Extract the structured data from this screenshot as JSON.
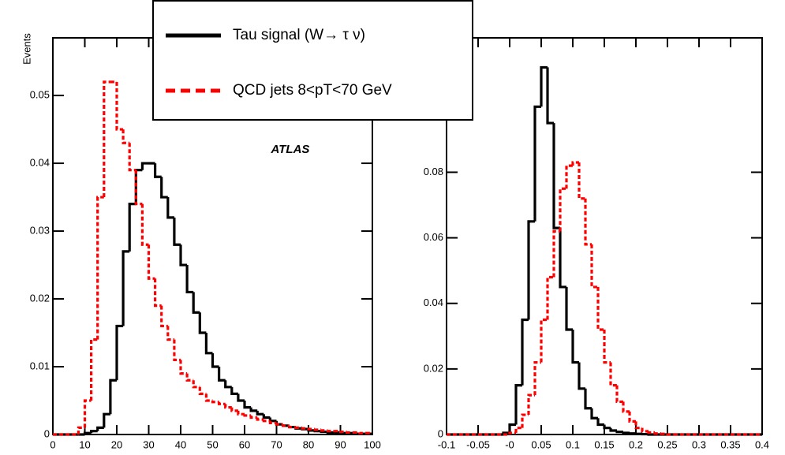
{
  "chart_data": [
    {
      "type": "histogram",
      "ylabel": "Events",
      "annotation": "ATLAS",
      "bins": [
        0,
        2,
        4,
        6,
        8,
        10,
        12,
        14,
        16,
        18,
        20,
        22,
        24,
        26,
        28,
        30,
        32,
        34,
        36,
        38,
        40,
        42,
        44,
        46,
        48,
        50,
        52,
        54,
        56,
        58,
        60,
        62,
        64,
        66,
        68,
        70,
        72,
        74,
        76,
        78,
        80,
        82,
        84,
        86,
        88,
        90,
        92,
        94,
        96,
        98,
        100
      ],
      "series": [
        {
          "name": "Tau signal (W→ τ ν)",
          "color": "#000000",
          "linestyle": "solid",
          "values": [
            0,
            0,
            0,
            0,
            0,
            0.0002,
            0.0005,
            0.001,
            0.003,
            0.008,
            0.016,
            0.027,
            0.034,
            0.039,
            0.04,
            0.04,
            0.038,
            0.035,
            0.032,
            0.028,
            0.025,
            0.021,
            0.018,
            0.015,
            0.012,
            0.01,
            0.008,
            0.007,
            0.006,
            0.005,
            0.004,
            0.0035,
            0.003,
            0.0025,
            0.002,
            0.0015,
            0.0013,
            0.0011,
            0.0009,
            0.0008,
            0.0006,
            0.0005,
            0.0004,
            0.0003,
            0.0003,
            0.0002,
            0.0002,
            0.0001,
            0.0001,
            0.0001
          ]
        },
        {
          "name": "QCD jets 8<pT<70 GeV",
          "color": "#ff0000",
          "linestyle": "dashed",
          "values": [
            0,
            0,
            0,
            0,
            0.001,
            0.005,
            0.014,
            0.035,
            0.052,
            0.052,
            0.045,
            0.043,
            0.039,
            0.034,
            0.028,
            0.023,
            0.019,
            0.016,
            0.014,
            0.011,
            0.009,
            0.008,
            0.007,
            0.006,
            0.005,
            0.0048,
            0.0045,
            0.004,
            0.0035,
            0.003,
            0.0028,
            0.0025,
            0.0022,
            0.002,
            0.0017,
            0.0015,
            0.0013,
            0.0011,
            0.001,
            0.0009,
            0.0008,
            0.0007,
            0.0006,
            0.0005,
            0.0005,
            0.0004,
            0.0003,
            0.0003,
            0.0002,
            0.0002
          ]
        }
      ],
      "xlim": [
        0,
        100
      ],
      "xticks": [
        0,
        10,
        20,
        30,
        40,
        50,
        60,
        70,
        80,
        90,
        100
      ],
      "ylim": [
        0,
        0.0585
      ],
      "yticks": [
        0,
        0.01,
        0.02,
        0.03,
        0.04,
        0.05
      ]
    },
    {
      "type": "histogram",
      "bins": [
        -0.1,
        -0.09,
        -0.08,
        -0.07,
        -0.06,
        -0.05,
        -0.04,
        -0.03,
        -0.02,
        -0.01,
        0,
        0.01,
        0.02,
        0.03,
        0.04,
        0.05,
        0.06,
        0.07,
        0.08,
        0.09,
        0.1,
        0.11,
        0.12,
        0.13,
        0.14,
        0.15,
        0.16,
        0.17,
        0.18,
        0.19,
        0.2,
        0.21,
        0.22,
        0.23,
        0.24,
        0.25,
        0.26,
        0.27,
        0.28,
        0.29,
        0.3,
        0.31,
        0.32,
        0.33,
        0.34,
        0.35,
        0.36,
        0.37,
        0.38,
        0.39,
        0.4
      ],
      "series": [
        {
          "color": "#000000",
          "linestyle": "solid",
          "values": [
            0,
            0,
            0,
            0,
            0,
            0,
            0,
            0,
            0,
            0.0005,
            0.003,
            0.015,
            0.035,
            0.065,
            0.1,
            0.112,
            0.095,
            0.063,
            0.045,
            0.032,
            0.022,
            0.014,
            0.008,
            0.005,
            0.003,
            0.002,
            0.0012,
            0.0008,
            0.0005,
            0.0003,
            0.0002,
            0.0001,
            0,
            0,
            0,
            0,
            0,
            0,
            0,
            0,
            0,
            0,
            0,
            0,
            0,
            0,
            0,
            0,
            0,
            0
          ]
        },
        {
          "color": "#ff0000",
          "linestyle": "dashed",
          "values": [
            0,
            0,
            0,
            0,
            0,
            0,
            0,
            0,
            0,
            0,
            0.0005,
            0.002,
            0.006,
            0.012,
            0.022,
            0.035,
            0.048,
            0.062,
            0.075,
            0.082,
            0.083,
            0.072,
            0.058,
            0.045,
            0.032,
            0.022,
            0.015,
            0.01,
            0.007,
            0.004,
            0.002,
            0.001,
            0.0006,
            0.0003,
            0.0002,
            0,
            0,
            0,
            0,
            0,
            0,
            0,
            0,
            0,
            0,
            0,
            0,
            0,
            0,
            0
          ]
        }
      ],
      "xlim": [
        -0.1,
        0.4
      ],
      "xticks": [
        -0.1,
        -0.05,
        {
          "value": 0,
          "label": "-0"
        },
        0.05,
        0.1,
        0.15,
        0.2,
        0.25,
        0.3,
        0.35,
        0.4
      ],
      "ylim": [
        0,
        0.121
      ],
      "yticks": [
        0,
        0.02,
        0.04,
        0.06,
        0.08
      ]
    }
  ]
}
